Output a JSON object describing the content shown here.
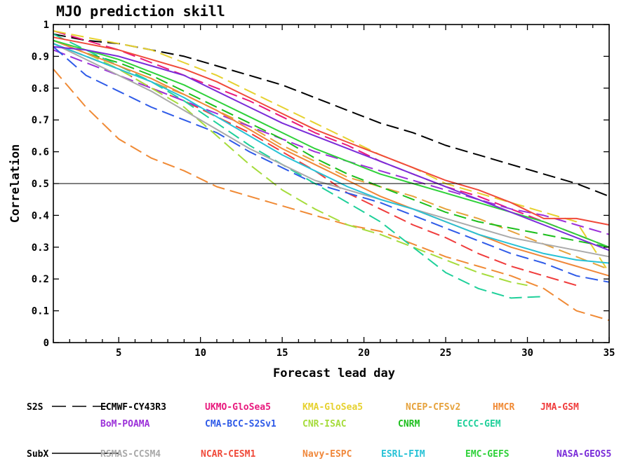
{
  "chart_data": {
    "type": "line",
    "title": "MJO prediction skill",
    "xlabel": "Forecast lead day",
    "ylabel": "Correlation",
    "xlim": [
      1,
      35
    ],
    "ylim": [
      0,
      1
    ],
    "xticks": [
      5,
      10,
      15,
      20,
      25,
      30,
      35
    ],
    "yticks": [
      0,
      0.1,
      0.2,
      0.3,
      0.4,
      0.5,
      0.6,
      0.7,
      0.8,
      0.9,
      1
    ],
    "reference_line": 0.5,
    "grid": false,
    "legend_groups": [
      {
        "label": "S2S",
        "style": "dashed"
      },
      {
        "label": "SubX",
        "style": "solid"
      }
    ],
    "series": [
      {
        "name": "ECMWF-CY43R3",
        "group": "S2S",
        "color": "#000000",
        "x": [
          1,
          3,
          5,
          7,
          9,
          11,
          13,
          15,
          17,
          19,
          21,
          23,
          25,
          27,
          29,
          31,
          33,
          35
        ],
        "values": [
          0.97,
          0.95,
          0.94,
          0.92,
          0.9,
          0.87,
          0.84,
          0.81,
          0.77,
          0.73,
          0.69,
          0.66,
          0.62,
          0.59,
          0.56,
          0.53,
          0.5,
          0.46
        ]
      },
      {
        "name": "UKMO-GloSea5",
        "group": "S2S",
        "color": "#e8197d",
        "x": [
          1,
          3,
          5,
          7,
          9,
          11,
          13,
          15,
          17,
          19,
          21,
          23,
          25,
          27,
          29,
          31,
          33,
          35
        ],
        "values": [
          0.98,
          0.95,
          0.92,
          0.88,
          0.84,
          0.8,
          0.76,
          0.71,
          0.66,
          0.62,
          0.57,
          0.53,
          0.49,
          0.46,
          0.42,
          0.38,
          0.34,
          0.3
        ]
      },
      {
        "name": "KMA-GloSea5",
        "group": "S2S",
        "color": "#e6d12f",
        "x": [
          1,
          3,
          5,
          7,
          9,
          11,
          13,
          15,
          17,
          19,
          21,
          23,
          25,
          27,
          29,
          31,
          33,
          35
        ],
        "values": [
          0.98,
          0.96,
          0.94,
          0.92,
          0.88,
          0.84,
          0.79,
          0.74,
          0.69,
          0.64,
          0.59,
          0.55,
          0.5,
          0.47,
          0.44,
          0.41,
          0.38,
          0.22
        ]
      },
      {
        "name": "NCEP-CFSv2",
        "group": "S2S",
        "color": "#e6a23c",
        "x": [
          1,
          3,
          5,
          7,
          9,
          11,
          13,
          15,
          17,
          19,
          21,
          23,
          25,
          27,
          29,
          31,
          33,
          35
        ],
        "values": [
          0.94,
          0.9,
          0.86,
          0.82,
          0.78,
          0.73,
          0.68,
          0.62,
          0.57,
          0.52,
          0.49,
          0.46,
          0.42,
          0.39,
          0.35,
          0.31,
          0.27,
          0.23
        ]
      },
      {
        "name": "HMCR",
        "group": "S2S",
        "color": "#f08a35",
        "x": [
          1,
          3,
          5,
          7,
          9,
          11,
          13,
          15,
          17,
          19,
          21,
          23,
          25,
          27,
          29,
          31,
          33,
          35
        ],
        "values": [
          0.86,
          0.74,
          0.64,
          0.58,
          0.54,
          0.49,
          0.46,
          0.43,
          0.4,
          0.37,
          0.35,
          0.31,
          0.27,
          0.24,
          0.21,
          0.17,
          0.1,
          0.07
        ]
      },
      {
        "name": "JMA-GSM",
        "group": "S2S",
        "color": "#f03c3c",
        "x": [
          1,
          3,
          5,
          7,
          9,
          11,
          13,
          15,
          17,
          19,
          21,
          23,
          25,
          27,
          29,
          31,
          33
        ],
        "values": [
          0.94,
          0.9,
          0.86,
          0.8,
          0.76,
          0.71,
          0.66,
          0.6,
          0.54,
          0.47,
          0.42,
          0.37,
          0.33,
          0.28,
          0.24,
          0.21,
          0.18
        ]
      },
      {
        "name": "BoM-POAMA",
        "group": "S2S",
        "color": "#9b30d9",
        "x": [
          1,
          3,
          5,
          7,
          9,
          11,
          13,
          15,
          17,
          19,
          21,
          23,
          25,
          27,
          29,
          31,
          33,
          35
        ],
        "values": [
          0.92,
          0.88,
          0.84,
          0.8,
          0.76,
          0.72,
          0.68,
          0.64,
          0.6,
          0.57,
          0.54,
          0.51,
          0.48,
          0.45,
          0.42,
          0.4,
          0.37,
          0.34
        ]
      },
      {
        "name": "CMA-BCC-S2Sv1",
        "group": "S2S",
        "color": "#2f5be8",
        "x": [
          1,
          3,
          5,
          7,
          9,
          11,
          13,
          15,
          17,
          19,
          21,
          23,
          25,
          27,
          29,
          31,
          33,
          35
        ],
        "values": [
          0.93,
          0.84,
          0.79,
          0.74,
          0.7,
          0.66,
          0.6,
          0.55,
          0.5,
          0.47,
          0.44,
          0.4,
          0.36,
          0.32,
          0.28,
          0.25,
          0.21,
          0.19
        ]
      },
      {
        "name": "CNR-ISAC",
        "group": "S2S",
        "color": "#a6dc3c",
        "x": [
          1,
          3,
          5,
          7,
          9,
          11,
          13,
          15,
          17,
          19,
          21,
          23,
          25,
          27,
          29,
          30
        ],
        "values": [
          0.95,
          0.91,
          0.86,
          0.8,
          0.74,
          0.65,
          0.56,
          0.48,
          0.42,
          0.37,
          0.34,
          0.3,
          0.26,
          0.22,
          0.19,
          0.18
        ]
      },
      {
        "name": "CNRM",
        "group": "S2S",
        "color": "#1cbf1c",
        "x": [
          1,
          3,
          5,
          7,
          9,
          11,
          13,
          15,
          17,
          19,
          21,
          23,
          25,
          27,
          29,
          31,
          33,
          35
        ],
        "values": [
          0.95,
          0.91,
          0.88,
          0.84,
          0.79,
          0.74,
          0.69,
          0.64,
          0.58,
          0.53,
          0.49,
          0.45,
          0.41,
          0.38,
          0.36,
          0.34,
          0.32,
          0.3
        ]
      },
      {
        "name": "ECCC-GEM",
        "group": "S2S",
        "color": "#1fd09a",
        "x": [
          1,
          3,
          5,
          7,
          9,
          11,
          13,
          15,
          17,
          19,
          21,
          23,
          25,
          27,
          29,
          31
        ],
        "values": [
          0.97,
          0.92,
          0.87,
          0.82,
          0.76,
          0.69,
          0.62,
          0.56,
          0.5,
          0.44,
          0.38,
          0.3,
          0.22,
          0.17,
          0.14,
          0.145
        ]
      },
      {
        "name": "RSMAS-CCSM4",
        "group": "SubX",
        "color": "#aaaaaa",
        "x": [
          1,
          3,
          5,
          7,
          9,
          11,
          13,
          15,
          17,
          19,
          21,
          23,
          25,
          27,
          29,
          31,
          33,
          35
        ],
        "values": [
          0.94,
          0.89,
          0.84,
          0.79,
          0.73,
          0.67,
          0.61,
          0.56,
          0.51,
          0.48,
          0.45,
          0.42,
          0.39,
          0.36,
          0.33,
          0.31,
          0.29,
          0.27
        ]
      },
      {
        "name": "NCAR-CESM1",
        "group": "SubX",
        "color": "#f04a3a",
        "x": [
          1,
          3,
          5,
          7,
          9,
          11,
          13,
          15,
          17,
          19,
          21,
          23,
          25,
          27,
          29,
          31,
          33,
          35
        ],
        "values": [
          0.96,
          0.94,
          0.92,
          0.89,
          0.86,
          0.82,
          0.77,
          0.72,
          0.67,
          0.63,
          0.59,
          0.55,
          0.51,
          0.48,
          0.44,
          0.39,
          0.39,
          0.37
        ]
      },
      {
        "name": "Navy-ESPC",
        "group": "SubX",
        "color": "#f0873a",
        "x": [
          1,
          3,
          5,
          7,
          9,
          11,
          13,
          15,
          17,
          19,
          21,
          23,
          25,
          27,
          29,
          31,
          33,
          35
        ],
        "values": [
          0.95,
          0.91,
          0.87,
          0.83,
          0.78,
          0.73,
          0.67,
          0.61,
          0.56,
          0.51,
          0.46,
          0.42,
          0.38,
          0.34,
          0.3,
          0.27,
          0.24,
          0.21
        ]
      },
      {
        "name": "ESRL-FIM",
        "group": "SubX",
        "color": "#27c2d6",
        "x": [
          1,
          3,
          5,
          7,
          9,
          11,
          13,
          15,
          17,
          19,
          21,
          23,
          25,
          27,
          29,
          31,
          33,
          35
        ],
        "values": [
          0.94,
          0.9,
          0.86,
          0.82,
          0.77,
          0.71,
          0.65,
          0.59,
          0.54,
          0.49,
          0.45,
          0.42,
          0.38,
          0.34,
          0.31,
          0.28,
          0.26,
          0.25
        ]
      },
      {
        "name": "EMC-GEFS",
        "group": "SubX",
        "color": "#2fd13a",
        "x": [
          1,
          3,
          5,
          7,
          9,
          11,
          13,
          15,
          17,
          19,
          21,
          23,
          25,
          27,
          29,
          31,
          33,
          35
        ],
        "values": [
          0.95,
          0.92,
          0.89,
          0.85,
          0.81,
          0.76,
          0.71,
          0.66,
          0.61,
          0.57,
          0.53,
          0.5,
          0.47,
          0.44,
          0.41,
          0.38,
          0.34,
          0.3
        ]
      },
      {
        "name": "NASA-GEOS5",
        "group": "SubX",
        "color": "#7a2cd9",
        "x": [
          1,
          3,
          5,
          7,
          9,
          11,
          13,
          15,
          17,
          19,
          21,
          23,
          25,
          27,
          29,
          31,
          33,
          35
        ],
        "values": [
          0.93,
          0.92,
          0.9,
          0.87,
          0.84,
          0.79,
          0.74,
          0.69,
          0.65,
          0.61,
          0.57,
          0.53,
          0.49,
          0.45,
          0.41,
          0.37,
          0.33,
          0.29
        ]
      }
    ]
  }
}
